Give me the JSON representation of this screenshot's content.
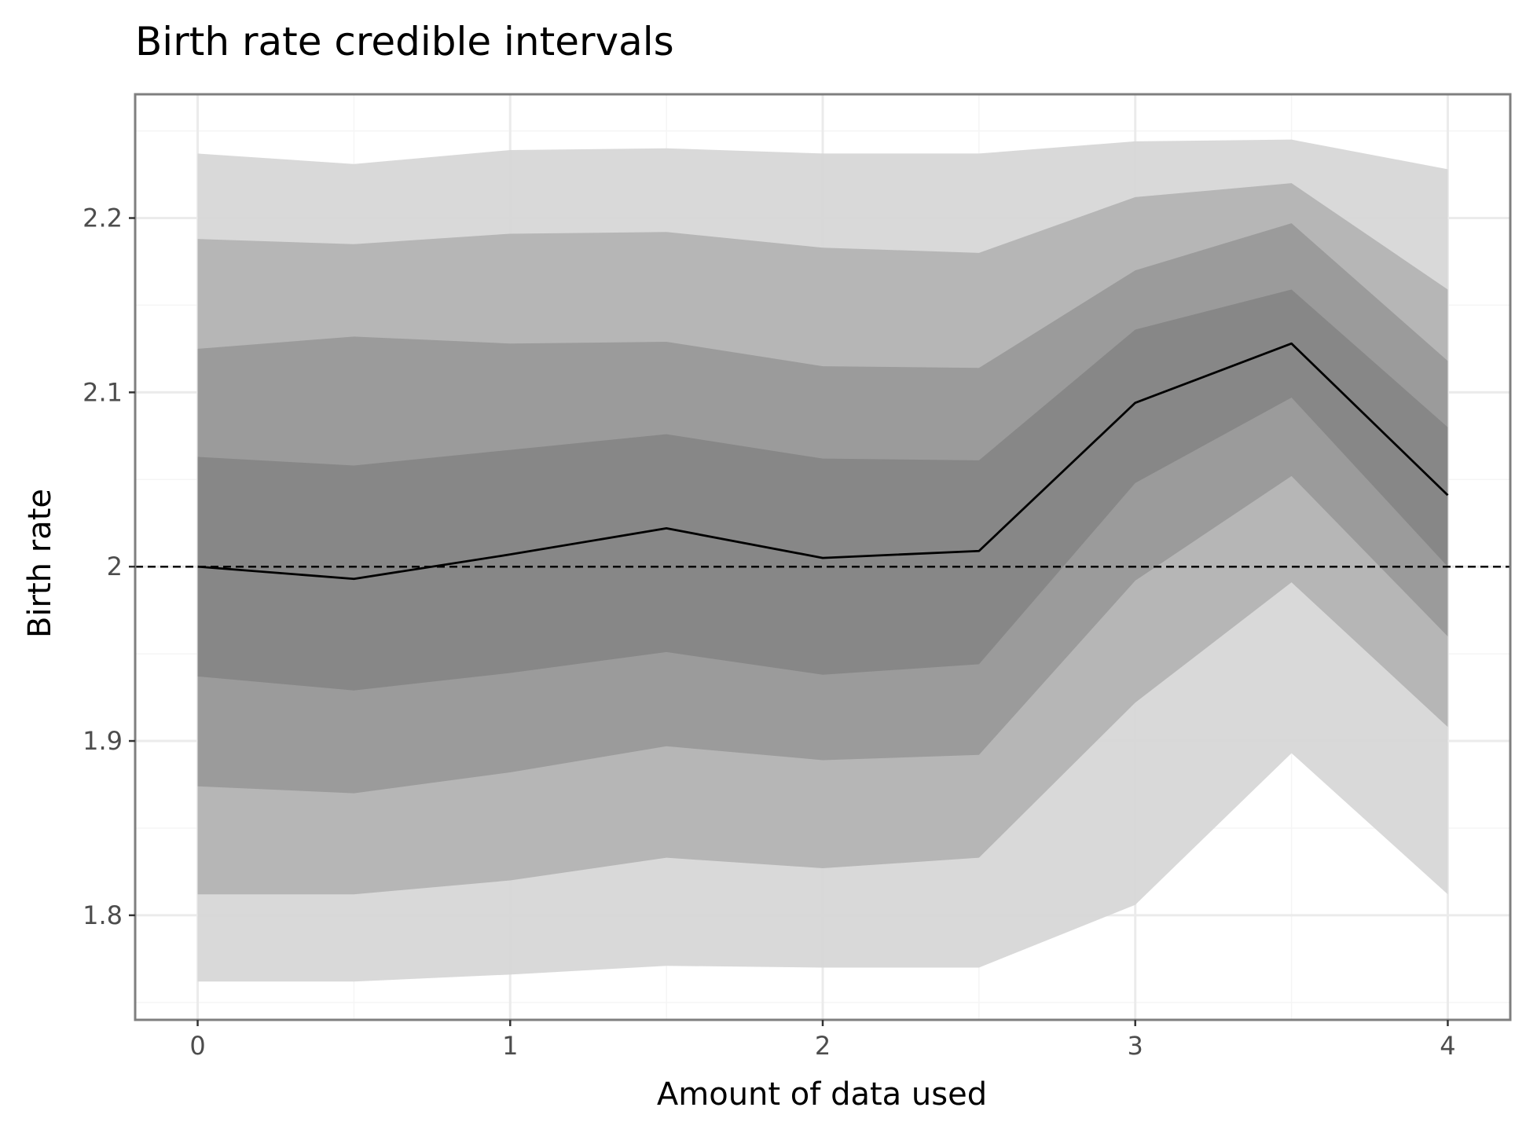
{
  "chart_data": {
    "type": "area",
    "title": "Birth rate credible intervals",
    "xlabel": "Amount of data used",
    "ylabel": "Birth rate",
    "x": [
      0,
      0.5,
      1,
      1.5,
      2,
      2.5,
      3,
      3.5,
      4
    ],
    "xlim": [
      -0.2,
      4.2
    ],
    "ylim": [
      1.74,
      2.271
    ],
    "xticks": [
      0,
      1,
      2,
      3,
      4
    ],
    "xtick_labels": [
      "0",
      "1",
      "2",
      "3",
      "4"
    ],
    "yticks": [
      1.8,
      1.9,
      2.0,
      2.1,
      2.2
    ],
    "ytick_labels": [
      "1.8",
      "1.9",
      "2",
      "2.1",
      "2.2"
    ],
    "grid": true,
    "reference_line": {
      "y": 2.0,
      "style": "dashed",
      "color": "#000000"
    },
    "bands": [
      {
        "lower": [
          1.762,
          1.762,
          1.766,
          1.771,
          1.77,
          1.77,
          1.806,
          1.893,
          1.812
        ],
        "upper": [
          2.237,
          2.231,
          2.239,
          2.24,
          2.237,
          2.237,
          2.244,
          2.245,
          2.228
        ],
        "color": "#d6d6d6"
      },
      {
        "lower": [
          1.812,
          1.812,
          1.82,
          1.833,
          1.827,
          1.833,
          1.922,
          1.991,
          1.908
        ],
        "upper": [
          2.188,
          2.185,
          2.191,
          2.192,
          2.183,
          2.18,
          2.212,
          2.22,
          2.159
        ],
        "color": "#b3b3b3"
      },
      {
        "lower": [
          1.874,
          1.87,
          1.882,
          1.897,
          1.889,
          1.892,
          1.992,
          2.052,
          1.96
        ],
        "upper": [
          2.125,
          2.132,
          2.128,
          2.129,
          2.115,
          2.114,
          2.17,
          2.197,
          2.118
        ],
        "color": "#999999"
      },
      {
        "lower": [
          1.937,
          1.929,
          1.939,
          1.951,
          1.938,
          1.944,
          2.048,
          2.097,
          2.0
        ],
        "upper": [
          2.063,
          2.058,
          2.067,
          2.076,
          2.062,
          2.061,
          2.136,
          2.159,
          2.08
        ],
        "color": "#858585"
      }
    ],
    "median": [
      2.0,
      1.993,
      2.007,
      2.022,
      2.005,
      2.009,
      2.094,
      2.128,
      2.041
    ]
  },
  "colors": {
    "panel_border": "#7f7f7f",
    "major_grid": "#ebebeb",
    "minor_grid": "#f5f5f5",
    "median_line": "#000000",
    "tick_text": "#4d4d4d"
  }
}
